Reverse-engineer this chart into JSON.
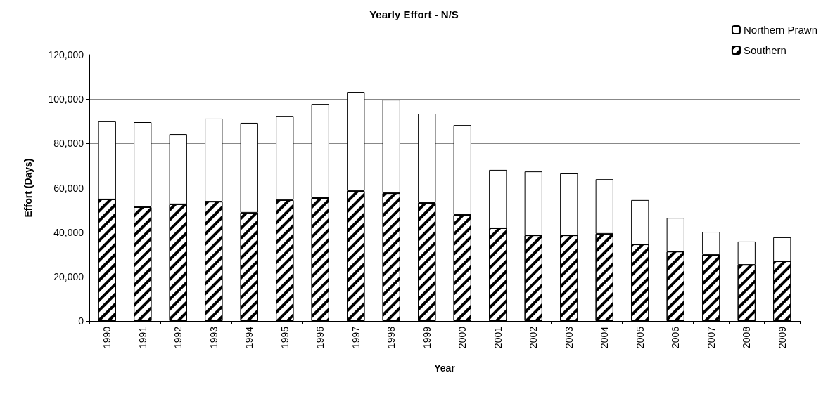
{
  "chart_data": {
    "type": "bar",
    "title": "Yearly Effort - N/S",
    "xlabel": "Year",
    "ylabel": "Effort (Days)",
    "categories": [
      "1990",
      "1991",
      "1992",
      "1993",
      "1994",
      "1995",
      "1996",
      "1997",
      "1998",
      "1999",
      "2000",
      "2001",
      "2002",
      "2003",
      "2004",
      "2005",
      "2006",
      "2007",
      "2008",
      "2009"
    ],
    "stacked": true,
    "series": [
      {
        "name": "Southern",
        "color": "#000000",
        "values": [
          54800,
          51300,
          52600,
          53800,
          48800,
          54500,
          55400,
          58600,
          57600,
          53200,
          47800,
          41800,
          38600,
          38600,
          39300,
          34500,
          31300,
          29800,
          25300,
          26900
        ]
      },
      {
        "name": "Northern Prawn",
        "color": "#ffffff",
        "values": [
          35400,
          38300,
          31600,
          37400,
          40500,
          37900,
          42400,
          44600,
          42100,
          40200,
          40500,
          26300,
          28800,
          27900,
          24600,
          20000,
          15200,
          10400,
          10500,
          10800
        ]
      }
    ],
    "ylim": [
      0,
      120000
    ],
    "yticks": [
      {
        "value": 0,
        "label": "0"
      },
      {
        "value": 20000,
        "label": "20,000"
      },
      {
        "value": 40000,
        "label": "40,000"
      },
      {
        "value": 60000,
        "label": "60,000"
      },
      {
        "value": 80000,
        "label": "80,000"
      },
      {
        "value": 100000,
        "label": "100,000"
      },
      {
        "value": 120000,
        "label": "120,000"
      }
    ],
    "grid": "y",
    "legend": "top right"
  }
}
